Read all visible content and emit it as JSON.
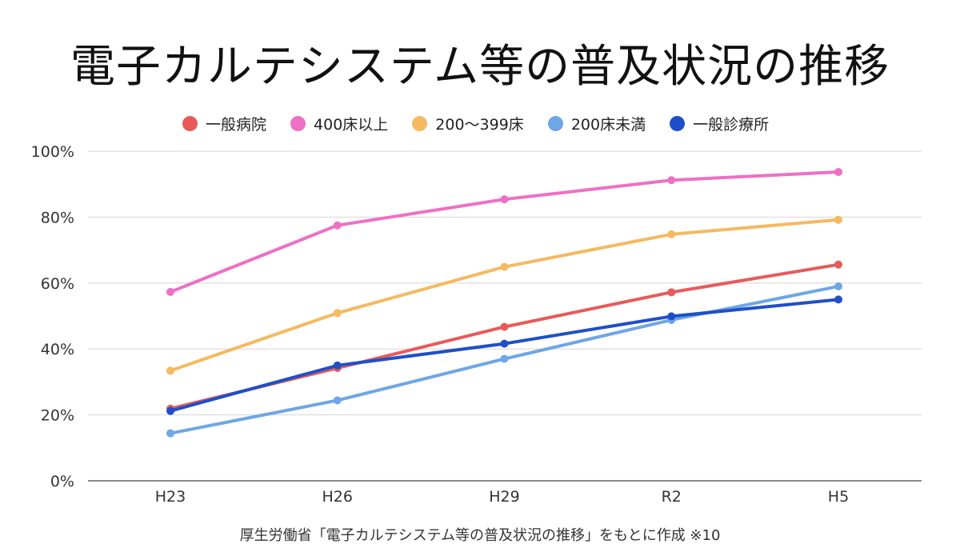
{
  "title": "電子カルテシステム等の普及状況の推移",
  "source_note": "厚生労働省「電子カルテシステム等の普及状況の推移」をもとに作成 ※10",
  "chart_data": {
    "type": "line",
    "title": "電子カルテシステム等の普及状況の推移",
    "xlabel": "",
    "ylabel": "",
    "categories": [
      "H23",
      "H26",
      "H29",
      "R2",
      "H5"
    ],
    "ylim": [
      0,
      100
    ],
    "yticks": [
      0,
      20,
      40,
      60,
      80,
      100
    ],
    "ytick_labels": [
      "0%",
      "20%",
      "40%",
      "60%",
      "80%",
      "100%"
    ],
    "grid": true,
    "legend_position": "top",
    "series": [
      {
        "name": "一般病院",
        "color": "#e85a5a",
        "values": [
          21.9,
          34.2,
          46.7,
          57.2,
          65.6
        ]
      },
      {
        "name": "400床以上",
        "color": "#ee6fc6",
        "values": [
          57.3,
          77.5,
          85.4,
          91.2,
          93.7
        ]
      },
      {
        "name": "200〜399床",
        "color": "#f5b960",
        "values": [
          33.4,
          50.9,
          64.9,
          74.8,
          79.2
        ]
      },
      {
        "name": "200床未満",
        "color": "#6ea6e6",
        "values": [
          14.4,
          24.4,
          37.0,
          48.8,
          59.0
        ]
      },
      {
        "name": "一般診療所",
        "color": "#1f4fc8",
        "values": [
          21.2,
          35.0,
          41.6,
          49.9,
          55.0
        ]
      }
    ]
  }
}
